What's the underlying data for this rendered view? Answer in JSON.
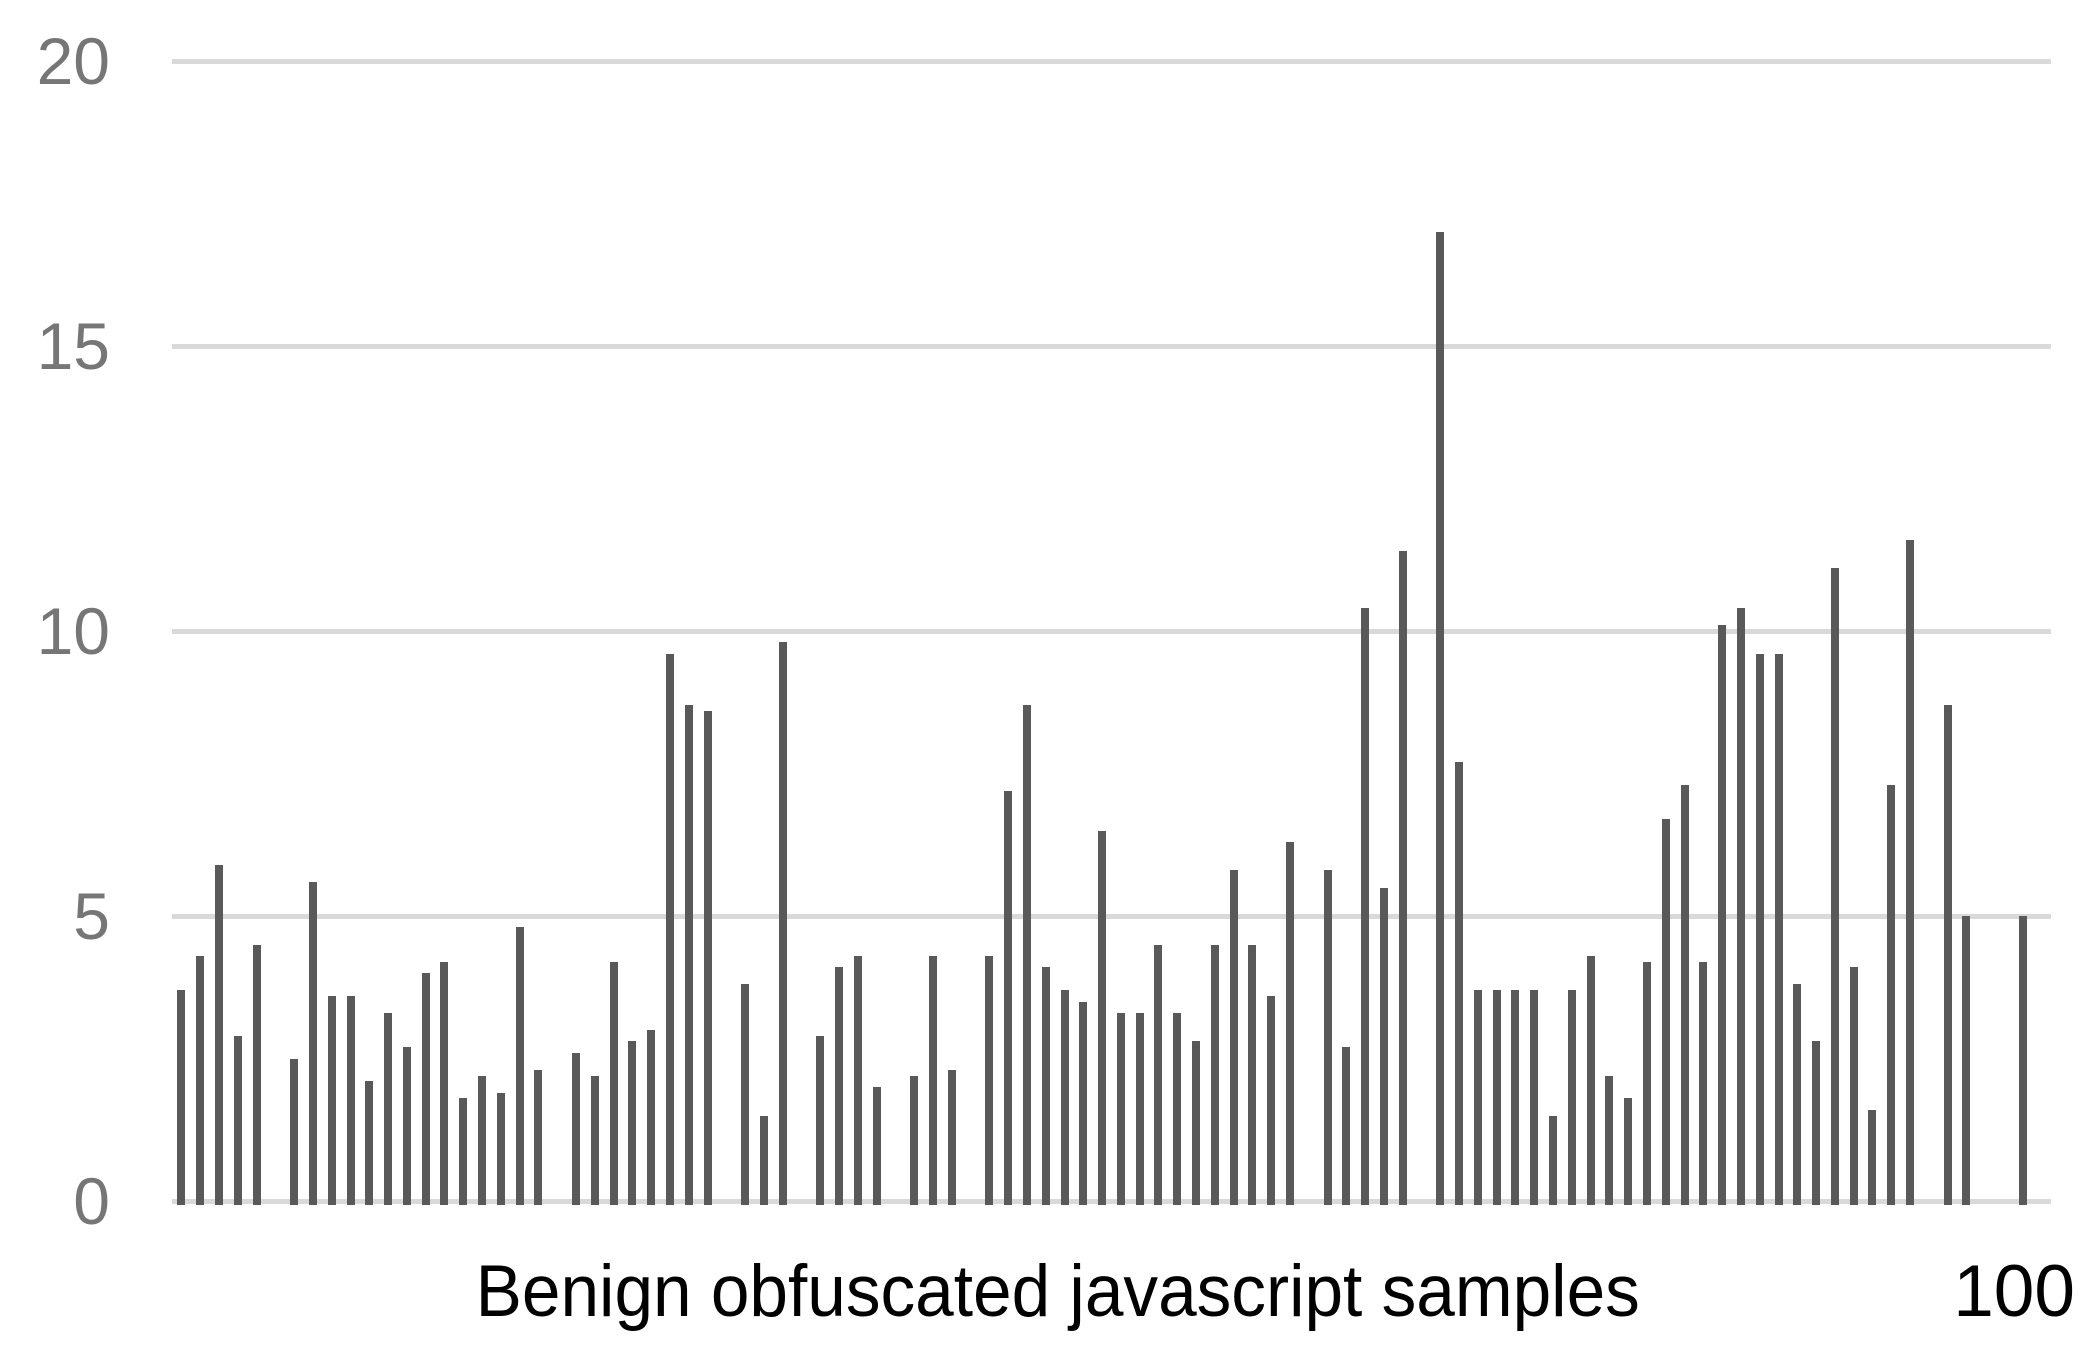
{
  "chart_data": {
    "type": "bar",
    "title": "",
    "xlabel": "Benign obfuscated javascript samples",
    "x_axis_end_tick_label": "100",
    "ylabel": "",
    "x_range": [
      1,
      100
    ],
    "n_samples": 100,
    "ylim": [
      0,
      20
    ],
    "yticks": [
      0,
      5,
      10,
      15,
      20
    ],
    "grid": "horizontal",
    "legend": "none",
    "values": [
      3.7,
      4.3,
      5.9,
      2.9,
      4.5,
      0,
      2.5,
      5.6,
      3.6,
      3.6,
      2.1,
      3.3,
      2.7,
      4.0,
      4.2,
      1.8,
      2.2,
      1.9,
      4.8,
      2.3,
      0,
      2.6,
      2.2,
      4.2,
      2.8,
      3.0,
      9.6,
      8.7,
      8.6,
      0,
      3.8,
      1.5,
      9.8,
      0,
      2.9,
      4.1,
      4.3,
      2.0,
      0,
      2.2,
      4.3,
      2.3,
      0,
      4.3,
      7.2,
      8.7,
      4.1,
      3.7,
      3.5,
      6.5,
      3.3,
      3.3,
      4.5,
      3.3,
      2.8,
      4.5,
      5.8,
      4.5,
      3.6,
      6.3,
      0,
      5.8,
      2.7,
      10.4,
      5.5,
      11.4,
      0,
      17.0,
      7.7,
      3.7,
      3.7,
      3.7,
      3.7,
      1.5,
      3.7,
      4.3,
      2.2,
      1.8,
      4.2,
      6.7,
      7.3,
      4.2,
      10.1,
      10.4,
      9.6,
      9.6,
      3.8,
      2.8,
      11.1,
      4.1,
      1.6,
      7.3,
      11.6,
      0,
      8.7,
      5.0,
      0,
      0,
      5.0,
      0
    ],
    "colors": {
      "bar": "#595959",
      "gridline": "#d9d9d9",
      "ytick_label": "#767676",
      "xaxis_text": "#000000",
      "background": "#ffffff"
    }
  }
}
